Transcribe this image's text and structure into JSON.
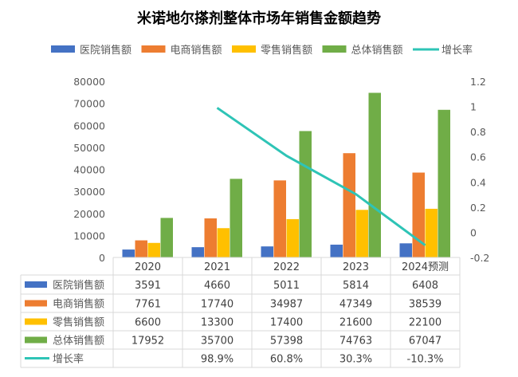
{
  "chart_data": {
    "type": "bar",
    "title": "米诺地尔搽剂整体市场年销售金额趋势",
    "categories": [
      "2020",
      "2021",
      "2022",
      "2023",
      "2024预测"
    ],
    "series": [
      {
        "name": "医院销售额",
        "color": "#4472C4",
        "values": [
          3591,
          4660,
          5011,
          5814,
          6408
        ],
        "labels": [
          "3591",
          "4660",
          "5011",
          "5814",
          "6408"
        ]
      },
      {
        "name": "电商销售额",
        "color": "#ED7D31",
        "values": [
          7761,
          17740,
          34987,
          47349,
          38539
        ],
        "labels": [
          "7761",
          "17740",
          "34987",
          "47349",
          "38539"
        ]
      },
      {
        "name": "零售销售额",
        "color": "#FFC000",
        "values": [
          6600,
          13300,
          17400,
          21600,
          22100
        ],
        "labels": [
          "6600",
          "13300",
          "17400",
          "21600",
          "22100"
        ]
      },
      {
        "name": "总体销售额",
        "color": "#70AD47",
        "values": [
          17952,
          35700,
          57398,
          74763,
          67047
        ],
        "labels": [
          "17952",
          "35700",
          "57398",
          "74763",
          "67047"
        ]
      }
    ],
    "line_series": {
      "name": "增长率",
      "color": "#2EC4B6",
      "values": [
        null,
        0.989,
        0.608,
        0.303,
        -0.103
      ],
      "labels": [
        "",
        "98.9%",
        "60.8%",
        "30.3%",
        "-10.3%"
      ],
      "axis": "right"
    },
    "y_left": {
      "range": [
        0,
        80000
      ],
      "ticks": [
        "0",
        "10000",
        "20000",
        "30000",
        "40000",
        "50000",
        "60000",
        "70000",
        "80000"
      ]
    },
    "y_right": {
      "range": [
        -0.2,
        1.2
      ],
      "ticks": [
        "-0.2",
        "0",
        "0.2",
        "0.4",
        "0.6",
        "0.8",
        "1",
        "1.2"
      ]
    },
    "grid": false,
    "legend": "top",
    "data_table": true
  }
}
